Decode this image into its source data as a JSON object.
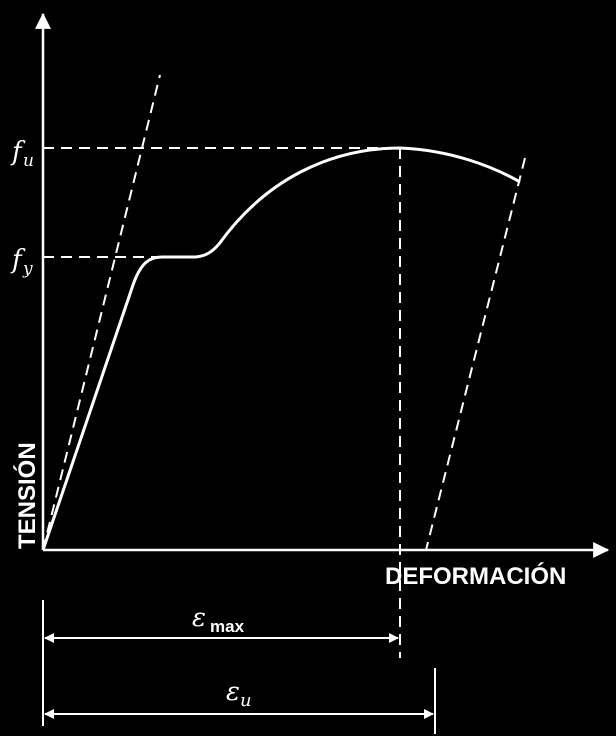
{
  "colors": {
    "background": "#000000",
    "ink": "#ffffff"
  },
  "axes": {
    "y_label": "TENSIÓN",
    "x_label": "DEFORMACIÓN"
  },
  "levels": {
    "fu_symbol": "f",
    "fu_sub": "u",
    "fy_symbol": "f",
    "fy_sub": "y"
  },
  "dimensions": {
    "emax_symbol": "ε",
    "emax_sub": "max",
    "eu_symbol": "ε",
    "eu_sub": "u"
  }
}
